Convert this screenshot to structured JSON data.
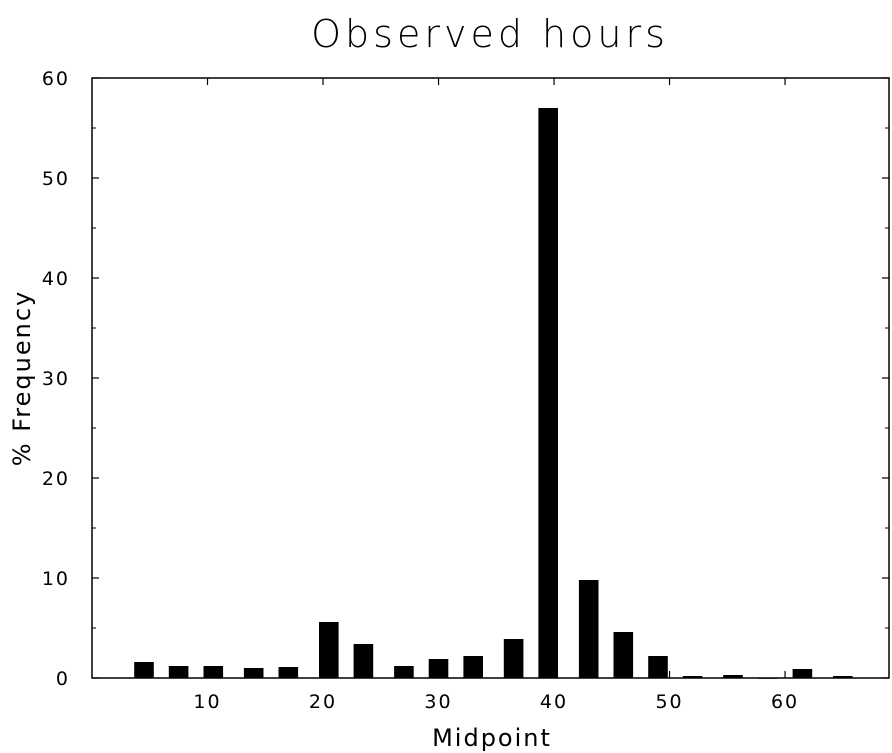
{
  "chart_data": {
    "type": "bar",
    "title": "Observed hours",
    "xlabel": "Midpoint",
    "ylabel": "% Frequency",
    "xlim": [
      0,
      69
    ],
    "ylim": [
      0,
      60
    ],
    "xticks": [
      10,
      20,
      30,
      40,
      50,
      60
    ],
    "yticks": [
      0,
      10,
      20,
      30,
      40,
      50,
      60
    ],
    "grid": false,
    "bar_width": 1.7,
    "x": [
      4.5,
      7.5,
      10.5,
      14,
      17,
      20.5,
      23.5,
      27,
      30,
      33,
      36.5,
      39.5,
      43,
      46,
      49,
      52,
      55.5,
      58.5,
      61.5,
      65
    ],
    "values": [
      1.6,
      1.2,
      1.2,
      1.0,
      1.1,
      5.6,
      3.4,
      1.2,
      1.9,
      2.2,
      3.9,
      57.0,
      9.8,
      4.6,
      2.2,
      0.2,
      0.3,
      0.0,
      0.9,
      0.2
    ],
    "bar_color": "#000000",
    "frame_color": "#000000"
  }
}
